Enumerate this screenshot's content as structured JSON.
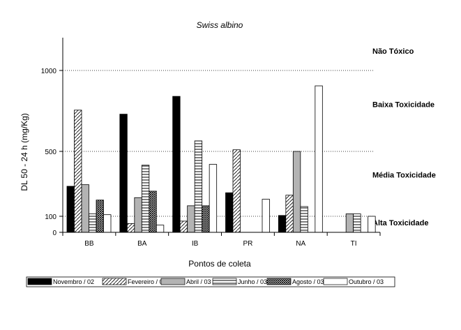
{
  "chart_data": {
    "type": "bar",
    "title": "Swiss albino",
    "xlabel": "Pontos de coleta",
    "ylabel": "DL 50 - 24 h  (mg/Kg)",
    "categories": [
      "BB",
      "BA",
      "IB",
      "PR",
      "NA",
      "TI"
    ],
    "yticks": [
      0,
      100,
      500,
      1000
    ],
    "ylim": [
      0,
      1200
    ],
    "reference_lines": [
      100,
      500,
      1000
    ],
    "zones": [
      {
        "label": "Não Tóxico",
        "y": 1120
      },
      {
        "label": "Baixa Toxicidade",
        "y": 790
      },
      {
        "label": "Média Toxicidade",
        "y": 355
      },
      {
        "label": "Alta Toxicidade",
        "y": 60
      }
    ],
    "series": [
      {
        "name": "Novembro / 02",
        "pattern": "solid-black",
        "values": [
          285,
          730,
          840,
          245,
          105,
          null
        ]
      },
      {
        "name": "Fevereiro / 03",
        "pattern": "diagonal",
        "values": [
          755,
          55,
          70,
          510,
          230,
          null
        ]
      },
      {
        "name": "Abril / 03",
        "pattern": "solid-gray",
        "values": [
          295,
          215,
          165,
          null,
          500,
          115
        ]
      },
      {
        "name": "Junho / 03",
        "pattern": "horizontal",
        "values": [
          115,
          415,
          565,
          null,
          160,
          115
        ]
      },
      {
        "name": "Agosto / 03",
        "pattern": "crosshatch",
        "values": [
          200,
          255,
          165,
          null,
          null,
          null
        ]
      },
      {
        "name": "Outubro / 03",
        "pattern": "white",
        "values": [
          110,
          45,
          420,
          205,
          905,
          100
        ]
      }
    ],
    "grid": false,
    "legend_position": "bottom"
  }
}
